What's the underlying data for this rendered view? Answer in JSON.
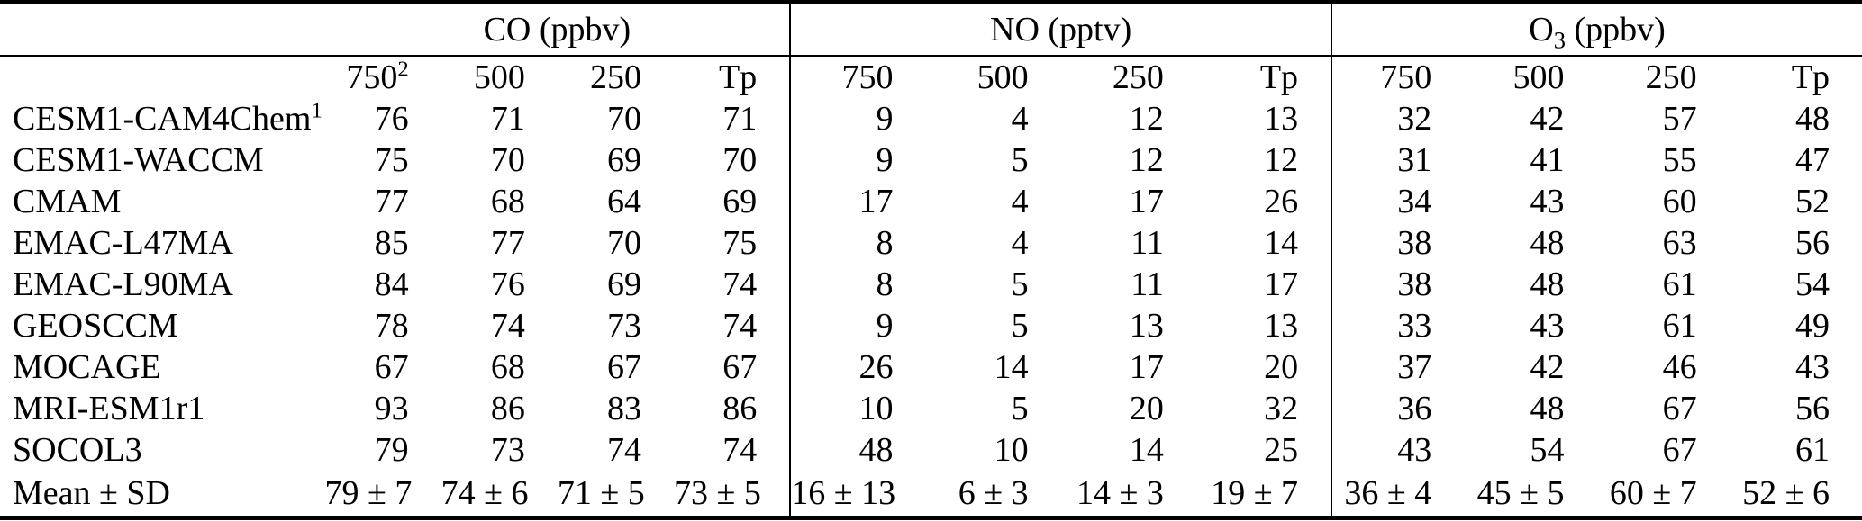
{
  "table": {
    "groups": [
      {
        "prefix": "CO",
        "sub": "",
        "suffix": " (ppbv)"
      },
      {
        "prefix": "NO",
        "sub": "",
        "suffix": " (pptv)"
      },
      {
        "prefix": "O",
        "sub": "3",
        "suffix": " (ppbv)"
      }
    ],
    "subheaders": [
      [
        {
          "text": "750",
          "sup": "2"
        },
        {
          "text": "500",
          "sup": ""
        },
        {
          "text": "250",
          "sup": ""
        },
        {
          "text": "Tp",
          "sup": ""
        }
      ],
      [
        {
          "text": "750",
          "sup": ""
        },
        {
          "text": "500",
          "sup": ""
        },
        {
          "text": "250",
          "sup": ""
        },
        {
          "text": "Tp",
          "sup": ""
        }
      ],
      [
        {
          "text": "750",
          "sup": ""
        },
        {
          "text": "500",
          "sup": ""
        },
        {
          "text": "250",
          "sup": ""
        },
        {
          "text": "Tp",
          "sup": ""
        }
      ]
    ],
    "rows": [
      {
        "model": "CESM1-CAM4Chem",
        "model_sup": "1",
        "values": [
          "76",
          "71",
          "70",
          "71",
          "9",
          "4",
          "12",
          "13",
          "32",
          "42",
          "57",
          "48"
        ]
      },
      {
        "model": "CESM1-WACCM",
        "model_sup": "",
        "values": [
          "75",
          "70",
          "69",
          "70",
          "9",
          "5",
          "12",
          "12",
          "31",
          "41",
          "55",
          "47"
        ]
      },
      {
        "model": "CMAM",
        "model_sup": "",
        "values": [
          "77",
          "68",
          "64",
          "69",
          "17",
          "4",
          "17",
          "26",
          "34",
          "43",
          "60",
          "52"
        ]
      },
      {
        "model": "EMAC-L47MA",
        "model_sup": "",
        "values": [
          "85",
          "77",
          "70",
          "75",
          "8",
          "4",
          "11",
          "14",
          "38",
          "48",
          "63",
          "56"
        ]
      },
      {
        "model": "EMAC-L90MA",
        "model_sup": "",
        "values": [
          "84",
          "76",
          "69",
          "74",
          "8",
          "5",
          "11",
          "17",
          "38",
          "48",
          "61",
          "54"
        ]
      },
      {
        "model": "GEOSCCM",
        "model_sup": "",
        "values": [
          "78",
          "74",
          "73",
          "74",
          "9",
          "5",
          "13",
          "13",
          "33",
          "43",
          "61",
          "49"
        ]
      },
      {
        "model": "MOCAGE",
        "model_sup": "",
        "values": [
          "67",
          "68",
          "67",
          "67",
          "26",
          "14",
          "17",
          "20",
          "37",
          "42",
          "46",
          "43"
        ]
      },
      {
        "model": "MRI-ESM1r1",
        "model_sup": "",
        "values": [
          "93",
          "86",
          "83",
          "86",
          "10",
          "5",
          "20",
          "32",
          "36",
          "48",
          "67",
          "56"
        ]
      },
      {
        "model": "SOCOL3",
        "model_sup": "",
        "values": [
          "79",
          "73",
          "74",
          "74",
          "48",
          "10",
          "14",
          "25",
          "43",
          "54",
          "67",
          "61"
        ]
      },
      {
        "model": "Mean ± SD",
        "model_sup": "",
        "values": [
          "79 ± 7",
          "74 ± 6",
          "71 ± 5",
          "73 ± 5",
          "16 ± 13",
          "6 ± 3",
          "14 ± 3",
          "19 ± 7",
          "36 ± 4",
          "45 ± 5",
          "60 ± 7",
          "52 ± 6"
        ]
      }
    ]
  },
  "colors": {
    "text": "#000000",
    "background": "#ffffff",
    "rule": "#000000"
  }
}
